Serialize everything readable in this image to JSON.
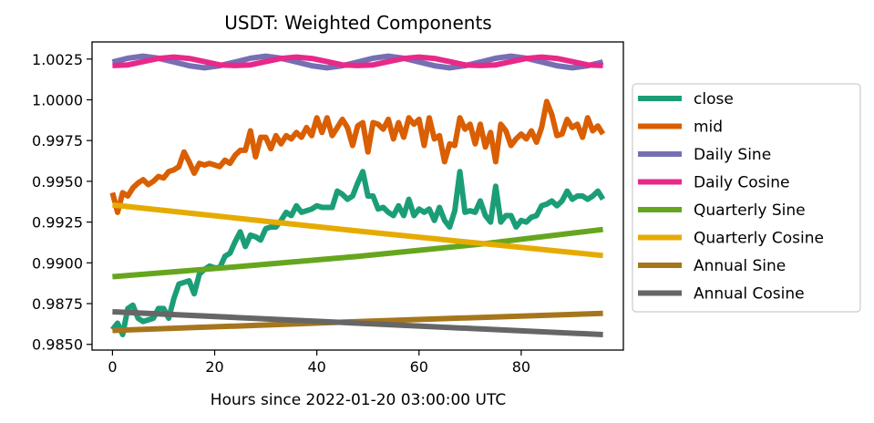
{
  "chart_data": {
    "type": "line",
    "title": "USDT: Weighted Components",
    "xlabel": "Hours since 2022-01-20 03:00:00 UTC",
    "ylabel": "",
    "xlim": [
      -4,
      100
    ],
    "ylim": [
      0.98465,
      1.00355
    ],
    "xticks": [
      0,
      20,
      40,
      60,
      80
    ],
    "yticks": [
      0.985,
      0.9875,
      0.99,
      0.9925,
      0.995,
      0.9975,
      1.0,
      1.0025
    ],
    "ytick_labels": [
      "0.9850",
      "0.9875",
      "0.9900",
      "0.9925",
      "0.9950",
      "0.9975",
      "1.0000",
      "1.0025"
    ],
    "grid": false,
    "legend": "outside-right",
    "series": [
      {
        "name": "close",
        "color": "#1b9e77",
        "x": [
          0,
          1,
          2,
          3,
          4,
          5,
          6,
          7,
          8,
          9,
          10,
          11,
          12,
          13,
          14,
          15,
          16,
          17,
          18,
          19,
          20,
          21,
          22,
          23,
          24,
          25,
          26,
          27,
          28,
          29,
          30,
          31,
          32,
          33,
          34,
          35,
          36,
          37,
          38,
          39,
          40,
          41,
          42,
          43,
          44,
          45,
          46,
          47,
          48,
          49,
          50,
          51,
          52,
          53,
          54,
          55,
          56,
          57,
          58,
          59,
          60,
          61,
          62,
          63,
          64,
          65,
          66,
          67,
          68,
          69,
          70,
          71,
          72,
          73,
          74,
          75,
          76,
          77,
          78,
          79,
          80,
          81,
          82,
          83,
          84,
          85,
          86,
          87,
          88,
          89,
          90,
          91,
          92,
          93,
          94,
          95,
          96
        ],
        "y": [
          0.9859,
          0.9863,
          0.9856,
          0.9872,
          0.9874,
          0.9866,
          0.9864,
          0.9865,
          0.9866,
          0.9872,
          0.9872,
          0.9866,
          0.9878,
          0.9887,
          0.9888,
          0.9889,
          0.9881,
          0.9893,
          0.9896,
          0.9898,
          0.9897,
          0.9897,
          0.9904,
          0.9906,
          0.9913,
          0.9919,
          0.991,
          0.9917,
          0.9916,
          0.9914,
          0.9921,
          0.9922,
          0.9922,
          0.9926,
          0.9931,
          0.9929,
          0.9935,
          0.9931,
          0.9932,
          0.9933,
          0.9935,
          0.9934,
          0.9934,
          0.9934,
          0.9944,
          0.9942,
          0.9939,
          0.9941,
          0.9949,
          0.9956,
          0.9941,
          0.9941,
          0.9933,
          0.9934,
          0.9931,
          0.9929,
          0.9935,
          0.9929,
          0.9939,
          0.9929,
          0.9933,
          0.9931,
          0.9933,
          0.9926,
          0.9934,
          0.9926,
          0.9922,
          0.9932,
          0.9956,
          0.9931,
          0.9932,
          0.9931,
          0.9938,
          0.9929,
          0.9925,
          0.9947,
          0.9925,
          0.9929,
          0.9929,
          0.9922,
          0.9926,
          0.9925,
          0.9928,
          0.9929,
          0.9935,
          0.9936,
          0.9938,
          0.9935,
          0.9938,
          0.9944,
          0.9939,
          0.9941,
          0.9941,
          0.9939,
          0.9941,
          0.9944,
          0.9939
        ]
      },
      {
        "name": "mid",
        "color": "#d95f02",
        "x": [
          0,
          1,
          2,
          3,
          4,
          5,
          6,
          7,
          8,
          9,
          10,
          11,
          12,
          13,
          14,
          15,
          16,
          17,
          18,
          19,
          20,
          21,
          22,
          23,
          24,
          25,
          26,
          27,
          28,
          29,
          30,
          31,
          32,
          33,
          34,
          35,
          36,
          37,
          38,
          39,
          40,
          41,
          42,
          43,
          44,
          45,
          46,
          47,
          48,
          49,
          50,
          51,
          52,
          53,
          54,
          55,
          56,
          57,
          58,
          59,
          60,
          61,
          62,
          63,
          64,
          65,
          66,
          67,
          68,
          69,
          70,
          71,
          72,
          73,
          74,
          75,
          76,
          77,
          78,
          79,
          80,
          81,
          82,
          83,
          84,
          85,
          86,
          87,
          88,
          89,
          90,
          91,
          92,
          93,
          94,
          95,
          96
        ],
        "y": [
          0.9943,
          0.9931,
          0.9943,
          0.9941,
          0.9946,
          0.9949,
          0.9951,
          0.9948,
          0.995,
          0.9953,
          0.9952,
          0.9956,
          0.9957,
          0.9959,
          0.9968,
          0.9962,
          0.9955,
          0.9961,
          0.996,
          0.9961,
          0.996,
          0.9959,
          0.9963,
          0.9961,
          0.9966,
          0.9969,
          0.9969,
          0.9981,
          0.9965,
          0.9977,
          0.9977,
          0.997,
          0.9978,
          0.9973,
          0.9978,
          0.9976,
          0.998,
          0.9977,
          0.9983,
          0.9978,
          0.9989,
          0.998,
          0.9989,
          0.9978,
          0.9983,
          0.9988,
          0.9983,
          0.9972,
          0.9984,
          0.9986,
          0.9968,
          0.9986,
          0.9985,
          0.9982,
          0.9988,
          0.9976,
          0.9986,
          0.9977,
          0.9989,
          0.9985,
          0.9988,
          0.9972,
          0.9989,
          0.9976,
          0.9978,
          0.9962,
          0.9973,
          0.9972,
          0.9989,
          0.9982,
          0.9985,
          0.9973,
          0.9985,
          0.9971,
          0.998,
          0.9962,
          0.9985,
          0.9981,
          0.9972,
          0.9976,
          0.9979,
          0.9976,
          0.9981,
          0.9974,
          0.9983,
          0.9999,
          0.9991,
          0.9978,
          0.9979,
          0.9988,
          0.9983,
          0.9985,
          0.9977,
          0.9989,
          0.9981,
          0.9984,
          0.9979
        ]
      },
      {
        "name": "Daily Sine",
        "color": "#7570b3",
        "x": [
          0,
          3,
          6,
          9,
          12,
          15,
          18,
          21,
          24,
          27,
          30,
          33,
          36,
          39,
          42,
          45,
          48,
          51,
          54,
          57,
          60,
          63,
          66,
          69,
          72,
          75,
          78,
          81,
          84,
          87,
          90,
          93,
          96
        ],
        "y": [
          1.00232,
          1.00255,
          1.00268,
          1.00255,
          1.00232,
          1.00209,
          1.00196,
          1.00209,
          1.00232,
          1.00255,
          1.00268,
          1.00255,
          1.00232,
          1.00209,
          1.00196,
          1.00209,
          1.00232,
          1.00255,
          1.00268,
          1.00255,
          1.00232,
          1.00209,
          1.00196,
          1.00209,
          1.00232,
          1.00255,
          1.00268,
          1.00255,
          1.00232,
          1.00209,
          1.00196,
          1.00209,
          1.00232
        ]
      },
      {
        "name": "Daily Cosine",
        "color": "#e7298a",
        "x": [
          0,
          3,
          6,
          9,
          12,
          15,
          18,
          21,
          24,
          27,
          30,
          33,
          36,
          39,
          42,
          45,
          48,
          51,
          54,
          57,
          60,
          63,
          66,
          69,
          72,
          75,
          78,
          81,
          84,
          87,
          90,
          93,
          96
        ],
        "y": [
          1.0021,
          1.00214,
          1.00234,
          1.00254,
          1.00262,
          1.00254,
          1.00234,
          1.00214,
          1.0021,
          1.00214,
          1.00234,
          1.00254,
          1.00262,
          1.00254,
          1.00234,
          1.00214,
          1.0021,
          1.00214,
          1.00234,
          1.00254,
          1.00262,
          1.00254,
          1.00234,
          1.00214,
          1.0021,
          1.00214,
          1.00234,
          1.00254,
          1.00262,
          1.00254,
          1.00234,
          1.00214,
          1.0021
        ]
      },
      {
        "name": "Quarterly Sine",
        "color": "#66a61e",
        "x": [
          0,
          24,
          48,
          72,
          96
        ],
        "y": [
          0.98915,
          0.98975,
          0.9904,
          0.99115,
          0.99205
        ]
      },
      {
        "name": "Quarterly Cosine",
        "color": "#e6ab02",
        "x": [
          0,
          24,
          48,
          72,
          96
        ],
        "y": [
          0.99355,
          0.99275,
          0.99195,
          0.9912,
          0.99045
        ]
      },
      {
        "name": "Annual Sine",
        "color": "#a6761d",
        "x": [
          0,
          24,
          48,
          72,
          96
        ],
        "y": [
          0.98585,
          0.98612,
          0.9864,
          0.98665,
          0.9869
        ]
      },
      {
        "name": "Annual Cosine",
        "color": "#666666",
        "x": [
          0,
          24,
          48,
          72,
          96
        ],
        "y": [
          0.987,
          0.98665,
          0.9863,
          0.98595,
          0.9856
        ]
      }
    ]
  }
}
